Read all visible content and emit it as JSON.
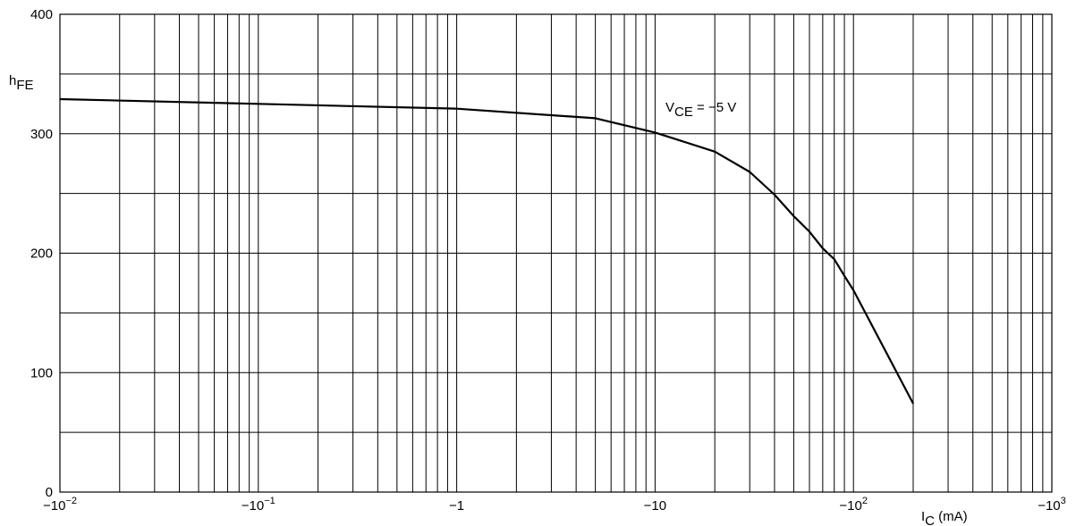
{
  "chart_data": {
    "type": "line",
    "x_scale": "log",
    "xlim": [
      0.01,
      1000
    ],
    "ylim": [
      0,
      400
    ],
    "grid": true,
    "y_ticks": [
      0,
      100,
      200,
      300,
      400
    ],
    "x_ticks": [
      {
        "value": 0.01,
        "base": "−10",
        "exp": "−2"
      },
      {
        "value": 0.1,
        "base": "−10",
        "exp": "−1"
      },
      {
        "value": 1,
        "base": "−1",
        "exp": ""
      },
      {
        "value": 10,
        "base": "−10",
        "exp": ""
      },
      {
        "value": 100,
        "base": "−10",
        "exp": "2"
      },
      {
        "value": 1000,
        "base": "−10",
        "exp": "3"
      }
    ],
    "ylabel": {
      "main": "h",
      "sub": "FE"
    },
    "xlabel": {
      "main": "I",
      "sub": "C",
      "unit": " (mA)"
    },
    "annotation": {
      "prefix": "V",
      "sub": "CE",
      "suffix": " = −5 V"
    },
    "series": [
      {
        "x": [
          0.01,
          0.1,
          1,
          5,
          10,
          20,
          30,
          40,
          50,
          60,
          70,
          80,
          90,
          100,
          200
        ],
        "y": [
          329,
          325,
          321,
          313,
          301,
          285,
          268,
          249,
          231,
          218,
          204,
          195,
          181,
          169,
          74
        ]
      }
    ]
  }
}
